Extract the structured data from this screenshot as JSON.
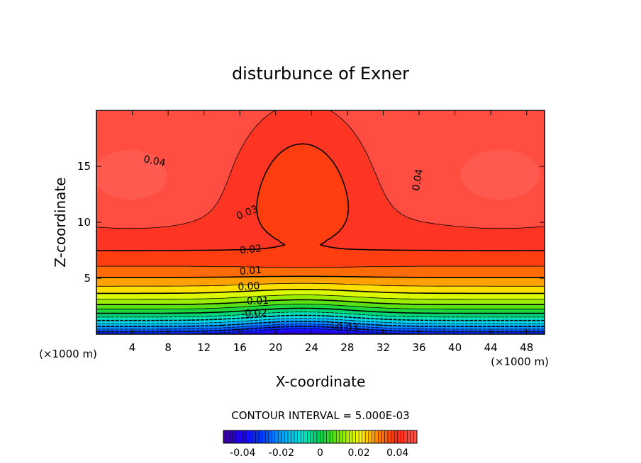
{
  "chart_data": {
    "type": "heatmap",
    "title": "disturbunce of Exner",
    "xlabel": "X-coordinate",
    "ylabel": "Z-coordinate",
    "x_unit_left": "(×1000 m)",
    "x_unit_right": "(×1000 m)",
    "xlim": [
      0,
      50
    ],
    "ylim": [
      0,
      20
    ],
    "xticks": [
      4,
      8,
      12,
      16,
      20,
      24,
      28,
      32,
      36,
      40,
      44,
      48
    ],
    "yticks": [
      5,
      10,
      15
    ],
    "contour_interval_text": "CONTOUR INTERVAL = 5.000E-03",
    "colorbar": {
      "range": [
        -0.05,
        0.05
      ],
      "ticks": [
        -0.04,
        -0.02,
        0,
        0.02,
        0.04
      ],
      "tick_labels": [
        "-0.04",
        "-0.02",
        "0",
        "0.02",
        "0.04"
      ]
    },
    "contour_labels": [
      "0.04",
      "0.04",
      "0.03",
      "0.02",
      "0.01",
      "0.00",
      "-0.01",
      "-0.02",
      "-0.03"
    ],
    "field_description": "two maxima about 0.043 near x=5 and x=45 at z=13, saddle near x=23 z=14, minimum about -0.035 at x=23 z=0",
    "colors": {
      "min": "#1a00ff",
      "cyan": "#00e6e6",
      "green": "#33cc33",
      "yellow": "#ffff00",
      "orange": "#ff8000",
      "max": "#ff2a1a"
    }
  }
}
